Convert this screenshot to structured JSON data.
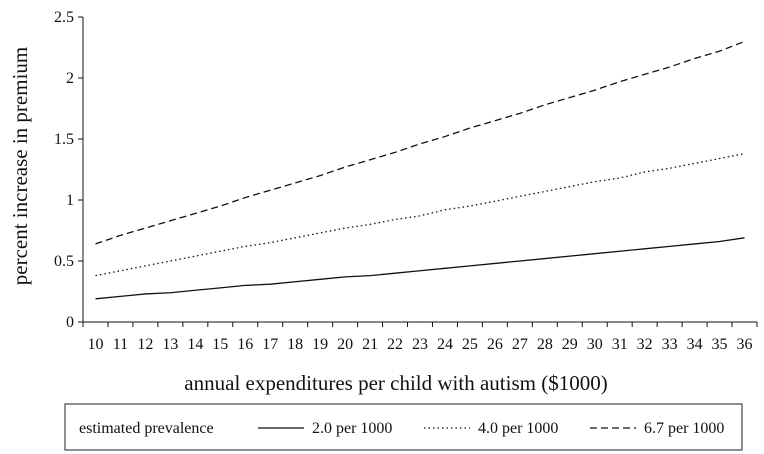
{
  "chart_data": {
    "type": "line",
    "title": "",
    "xlabel": "annual expenditures per child with autism ($1000)",
    "ylabel": "percent increase in premium",
    "x": [
      10,
      11,
      12,
      13,
      14,
      15,
      16,
      17,
      18,
      19,
      20,
      21,
      22,
      23,
      24,
      25,
      26,
      27,
      28,
      29,
      30,
      31,
      32,
      33,
      34,
      35,
      36
    ],
    "xlim": [
      9.5,
      36.5
    ],
    "ylim": [
      0,
      2.5
    ],
    "yticks": [
      "0",
      "0.5",
      "1",
      "1.5",
      "2",
      "2.5"
    ],
    "grid": false,
    "legend": {
      "placement": "bottom",
      "title": "estimated prevalence",
      "entries": [
        "2.0 per 1000",
        "4.0 per 1000",
        "6.7 per 1000"
      ]
    },
    "series": [
      {
        "name": "2.0 per 1000",
        "style": "solid",
        "values": [
          0.19,
          0.21,
          0.23,
          0.24,
          0.26,
          0.28,
          0.3,
          0.31,
          0.33,
          0.35,
          0.37,
          0.38,
          0.4,
          0.42,
          0.44,
          0.46,
          0.48,
          0.5,
          0.52,
          0.54,
          0.56,
          0.58,
          0.6,
          0.62,
          0.64,
          0.66,
          0.69
        ]
      },
      {
        "name": "4.0 per 1000",
        "style": "dotted",
        "values": [
          0.38,
          0.42,
          0.46,
          0.5,
          0.54,
          0.58,
          0.62,
          0.65,
          0.69,
          0.73,
          0.77,
          0.8,
          0.84,
          0.87,
          0.92,
          0.95,
          0.99,
          1.03,
          1.07,
          1.11,
          1.15,
          1.18,
          1.23,
          1.26,
          1.3,
          1.34,
          1.38
        ]
      },
      {
        "name": "6.7 per 1000",
        "style": "dashed",
        "values": [
          0.64,
          0.71,
          0.77,
          0.83,
          0.89,
          0.95,
          1.02,
          1.08,
          1.14,
          1.2,
          1.27,
          1.33,
          1.39,
          1.46,
          1.52,
          1.59,
          1.65,
          1.71,
          1.78,
          1.84,
          1.9,
          1.97,
          2.03,
          2.09,
          2.16,
          2.22,
          2.3
        ]
      }
    ]
  }
}
